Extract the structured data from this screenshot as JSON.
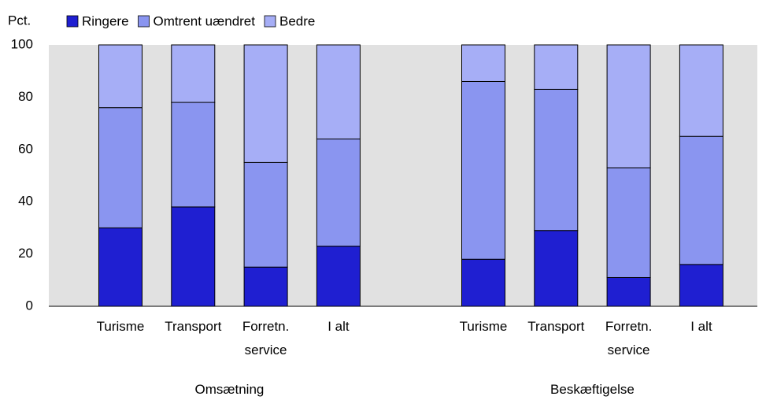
{
  "chart_data": {
    "type": "stacked_bar",
    "y_label": "Pct.",
    "categories": [
      "Turisme",
      "Transport",
      "Forretn. service",
      "I alt",
      "Turisme",
      "Transport",
      "Forretn. service",
      "I alt"
    ],
    "groups": [
      "Omsætning",
      "Beskæftigelse"
    ],
    "series": [
      {
        "name": "Ringere",
        "color": "#1f1fd1",
        "values": [
          30,
          38,
          15,
          23,
          18,
          29,
          11,
          16
        ]
      },
      {
        "name": "Omtrent uændret",
        "color": "#8a95f0",
        "values": [
          46,
          40,
          40,
          41,
          68,
          54,
          42,
          49
        ]
      },
      {
        "name": "Bedre",
        "color": "#a6aef6",
        "values": [
          24,
          22,
          45,
          36,
          14,
          17,
          47,
          35
        ]
      }
    ],
    "ylim": [
      0,
      100
    ],
    "yticks": [
      0,
      20,
      40,
      60,
      80,
      100
    ],
    "grid": false
  }
}
